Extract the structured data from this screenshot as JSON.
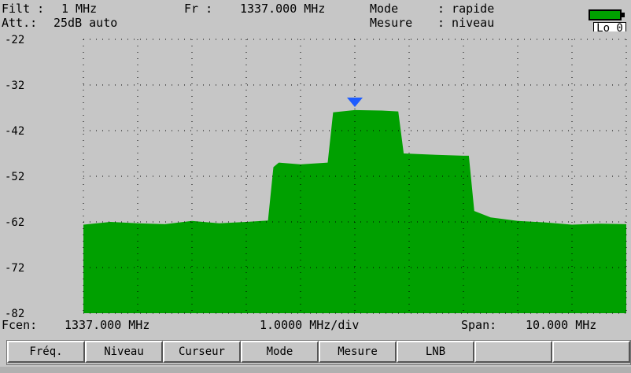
{
  "header": {
    "filt_label": "Filt :",
    "filt_value": "1 MHz",
    "fr_label": "Fr :",
    "fr_value": "1337.000 MHz",
    "mode_label": "Mode",
    "mode_value": ": rapide",
    "att_label": "Att.:",
    "att_value": "25dB auto",
    "mesure_label": "Mesure",
    "mesure_value": ": niveau",
    "lo_label": "Lo 0"
  },
  "footer": {
    "fcen_label": "Fcen:",
    "fcen_value": "1337.000 MHz",
    "div_value": "1.0000 MHz/div",
    "span_label": "Span:",
    "span_value": "10.000 MHz"
  },
  "softkeys": [
    {
      "label": "Fréq."
    },
    {
      "label": "Niveau"
    },
    {
      "label": "Curseur"
    },
    {
      "label": "Mode"
    },
    {
      "label": "Mesure"
    },
    {
      "label": "LNB"
    },
    {
      "label": ""
    },
    {
      "label": ""
    }
  ],
  "colors": {
    "trace": "#00a000",
    "marker": "#1e5cff",
    "plot_bg": "#c6c6c6",
    "battery": "#00a000"
  },
  "chart_data": {
    "type": "area",
    "y_ticks": [
      "-22",
      "-32",
      "-42",
      "-52",
      "-62",
      "-72",
      "-82"
    ],
    "ylim": [
      -82,
      -22
    ],
    "xlim": [
      1332.0,
      1342.0
    ],
    "grid": true,
    "marker_x": 1337.0,
    "x": [
      1332.0,
      1332.5,
      1333.0,
      1333.5,
      1334.0,
      1334.5,
      1335.0,
      1335.4,
      1335.5,
      1335.6,
      1336.0,
      1336.5,
      1336.6,
      1337.0,
      1337.5,
      1337.8,
      1337.9,
      1338.5,
      1339.0,
      1339.1,
      1339.2,
      1339.5,
      1340.0,
      1340.5,
      1341.0,
      1341.5,
      1342.0
    ],
    "y": [
      -62.6,
      -62.0,
      -62.3,
      -62.5,
      -61.8,
      -62.3,
      -62.0,
      -61.7,
      -50.0,
      -49.0,
      -49.4,
      -49.0,
      -38.0,
      -37.5,
      -37.6,
      -37.8,
      -47.0,
      -47.3,
      -47.5,
      -47.5,
      -59.6,
      -61.0,
      -61.8,
      -62.1,
      -62.6,
      -62.4,
      -62.5
    ]
  }
}
